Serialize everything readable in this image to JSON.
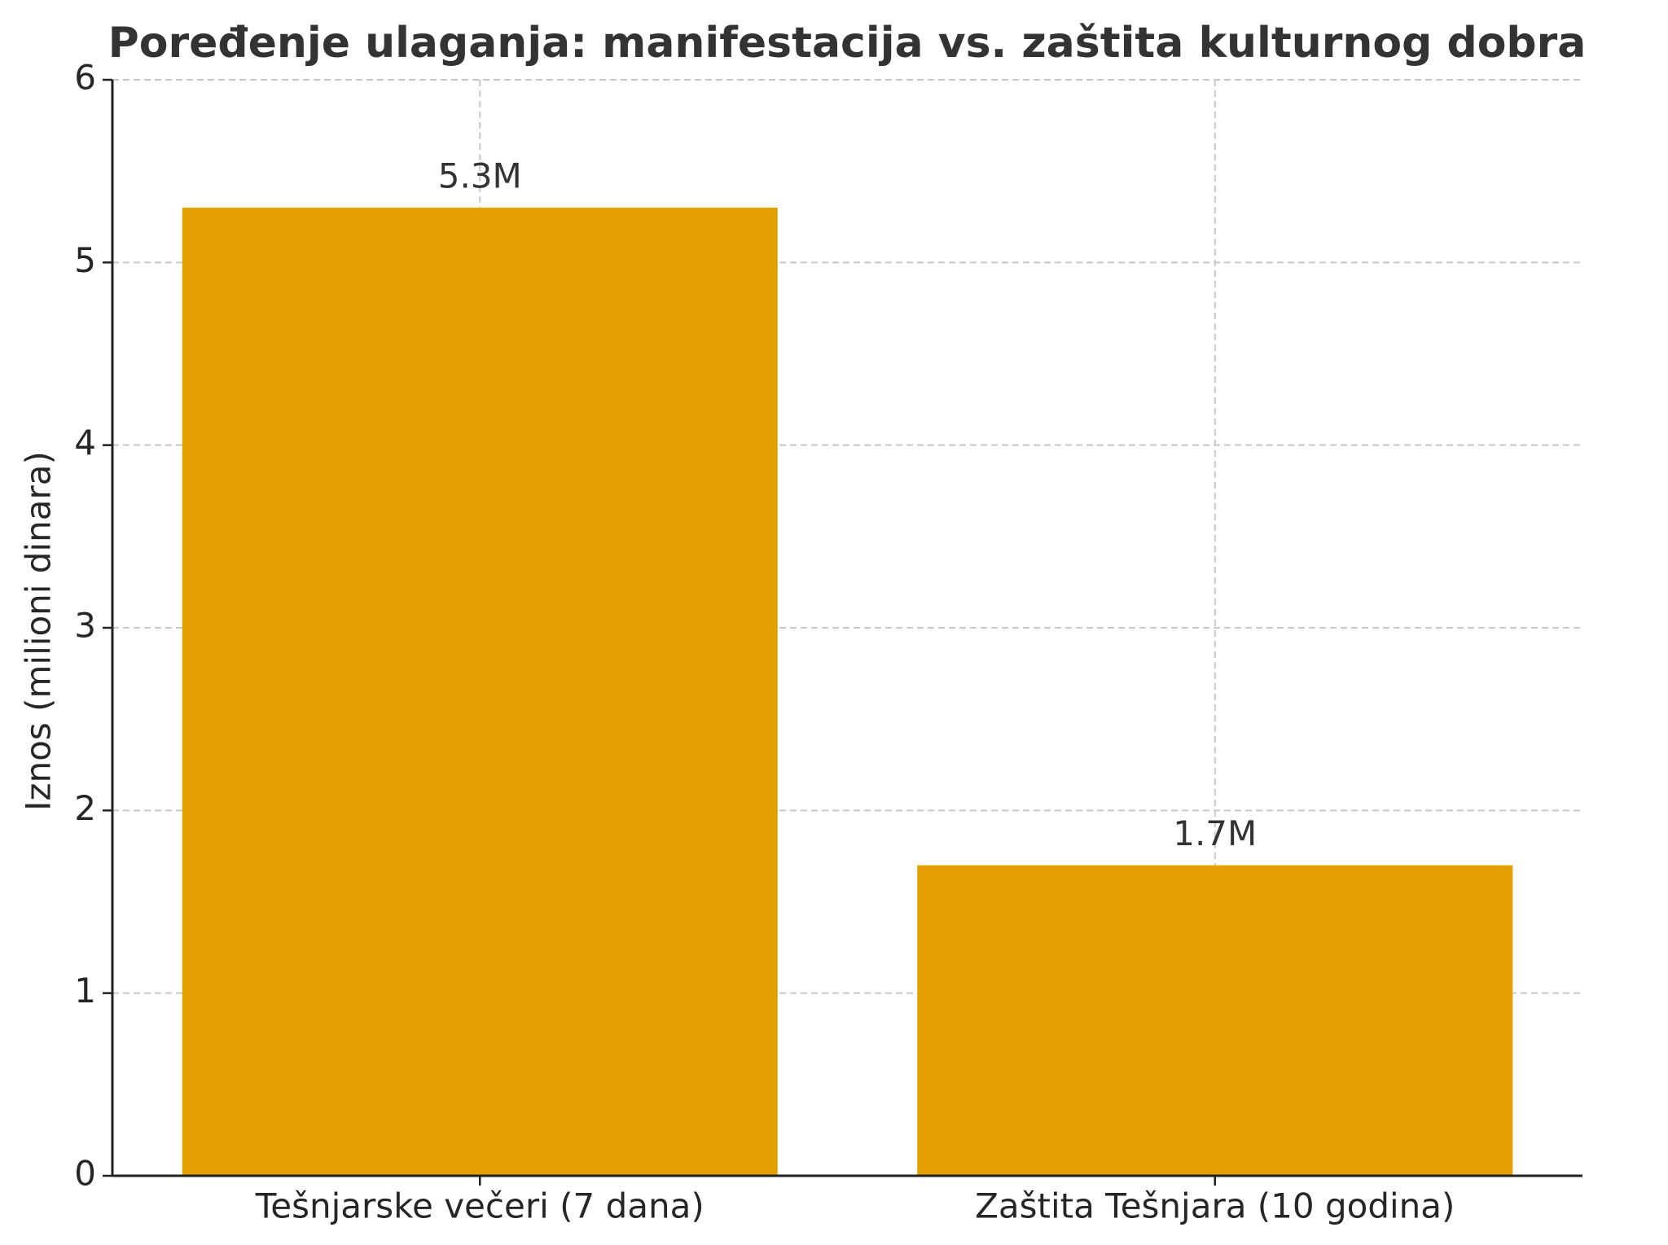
{
  "chart_data": {
    "type": "bar",
    "title": "Poređenje ulaganja: manifestacija vs. zaštita kulturnog dobra",
    "ylabel": "Iznos (milioni dinara)",
    "categories": [
      "Tešnjarske večeri (7 dana)",
      "Zaštita Tešnjara (10 godina)"
    ],
    "values": [
      5.3,
      1.7
    ],
    "value_labels": [
      "5.3M",
      "1.7M"
    ],
    "color": "#e4a000",
    "ylim": [
      0,
      6
    ],
    "yticks": [
      0,
      1,
      2,
      3,
      4,
      5,
      6
    ],
    "grid": true
  }
}
